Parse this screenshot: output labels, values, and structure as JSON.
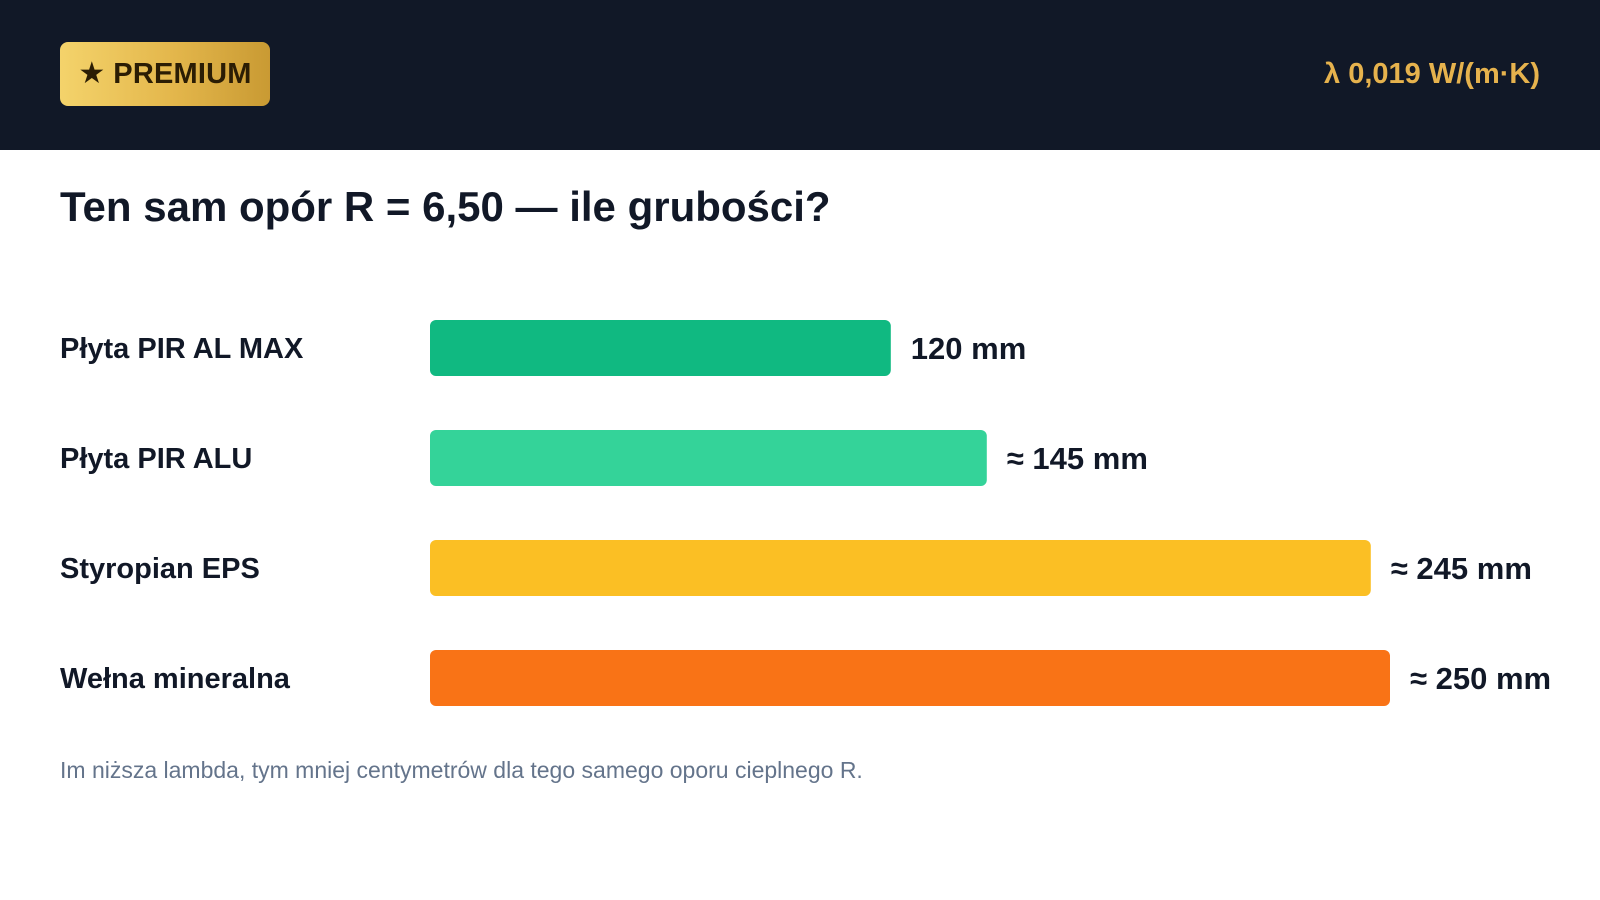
{
  "header": {
    "badge_label": "PREMIUM",
    "badge_icon": "star-icon",
    "lambda_text": "λ 0,019 W/(m·K)"
  },
  "title": "Ten sam opór R = 6,50 — ile grubości?",
  "footnote": "Im niższa lambda, tym mniej centymetrów dla tego samego oporu cieplnego R.",
  "chart_data": {
    "type": "bar",
    "orientation": "horizontal",
    "title": "Ten sam opór R = 6,50 — ile grubości?",
    "unit": "mm",
    "categories": [
      "Płyta PIR AL MAX",
      "Płyta PIR ALU",
      "Styropian EPS",
      "Wełna mineralna"
    ],
    "values": [
      120,
      145,
      245,
      250
    ],
    "value_labels": [
      "120 mm",
      "≈ 145 mm",
      "≈ 245 mm",
      "≈ 250 mm"
    ],
    "colors": [
      "#10b981",
      "#34d399",
      "#fbbf24",
      "#f97316"
    ],
    "xlim": [
      0,
      250
    ],
    "grid": false
  }
}
